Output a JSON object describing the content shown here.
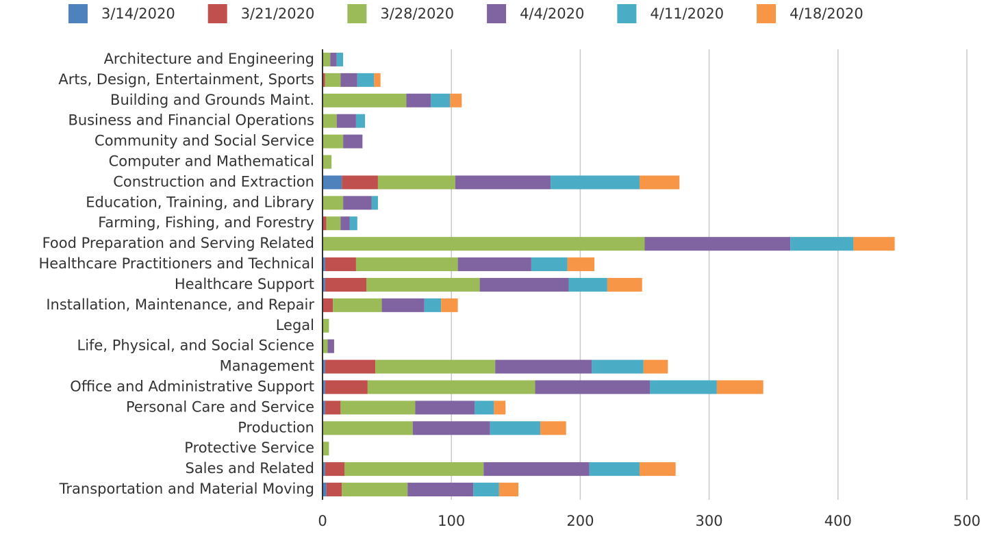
{
  "chart_data": {
    "type": "stacked-bar-horizontal",
    "categories": [
      "Architecture and Engineering",
      "Arts, Design, Entertainment, Sports",
      "Building and Grounds Maint.",
      "Business and Financial Operations",
      "Community and Social Service",
      "Computer and Mathematical",
      "Construction and Extraction",
      "Education, Training, and Library",
      "Farming, Fishing, and Forestry",
      "Food Preparation and Serving Related",
      "Healthcare Practitioners and Technical",
      "Healthcare Support",
      "Installation, Maintenance, and Repair",
      "Legal",
      "Life, Physical, and Social Science",
      "Management",
      "Office and Administrative Support",
      "Personal Care and Service",
      "Production",
      "Protective Service",
      "Sales and Related",
      "Transportation and Material Moving"
    ],
    "series": [
      {
        "name": "3/14/2020",
        "color": "#4f81bd",
        "values": [
          0,
          0,
          0,
          0,
          0,
          0,
          15,
          0,
          0,
          0,
          2,
          2,
          0,
          0,
          0,
          2,
          2,
          2,
          0,
          0,
          2,
          3
        ]
      },
      {
        "name": "3/21/2020",
        "color": "#c0504d",
        "values": [
          0,
          2,
          0,
          0,
          0,
          0,
          28,
          0,
          3,
          0,
          24,
          32,
          8,
          0,
          0,
          39,
          33,
          12,
          0,
          0,
          15,
          12
        ]
      },
      {
        "name": "3/28/2020",
        "color": "#9bbb59",
        "values": [
          6,
          12,
          65,
          11,
          16,
          7,
          60,
          16,
          11,
          250,
          79,
          88,
          38,
          5,
          4,
          93,
          130,
          58,
          70,
          5,
          108,
          51
        ]
      },
      {
        "name": "4/4/2020",
        "color": "#8064a2",
        "values": [
          5,
          13,
          19,
          15,
          15,
          0,
          74,
          22,
          7,
          113,
          57,
          69,
          33,
          0,
          5,
          75,
          89,
          46,
          60,
          0,
          82,
          51
        ]
      },
      {
        "name": "4/11/2020",
        "color": "#4bacc6",
        "values": [
          5,
          13,
          15,
          7,
          0,
          0,
          69,
          5,
          6,
          49,
          28,
          30,
          13,
          0,
          0,
          40,
          52,
          15,
          39,
          0,
          39,
          20
        ]
      },
      {
        "name": "4/18/2020",
        "color": "#f79646",
        "values": [
          0,
          5,
          9,
          0,
          0,
          0,
          31,
          0,
          0,
          32,
          21,
          27,
          13,
          0,
          0,
          19,
          36,
          9,
          20,
          0,
          28,
          15
        ]
      }
    ],
    "xlim": [
      0,
      500
    ],
    "xticks": [
      0,
      100,
      200,
      300,
      400,
      500
    ],
    "grid": true,
    "legend": "top"
  }
}
